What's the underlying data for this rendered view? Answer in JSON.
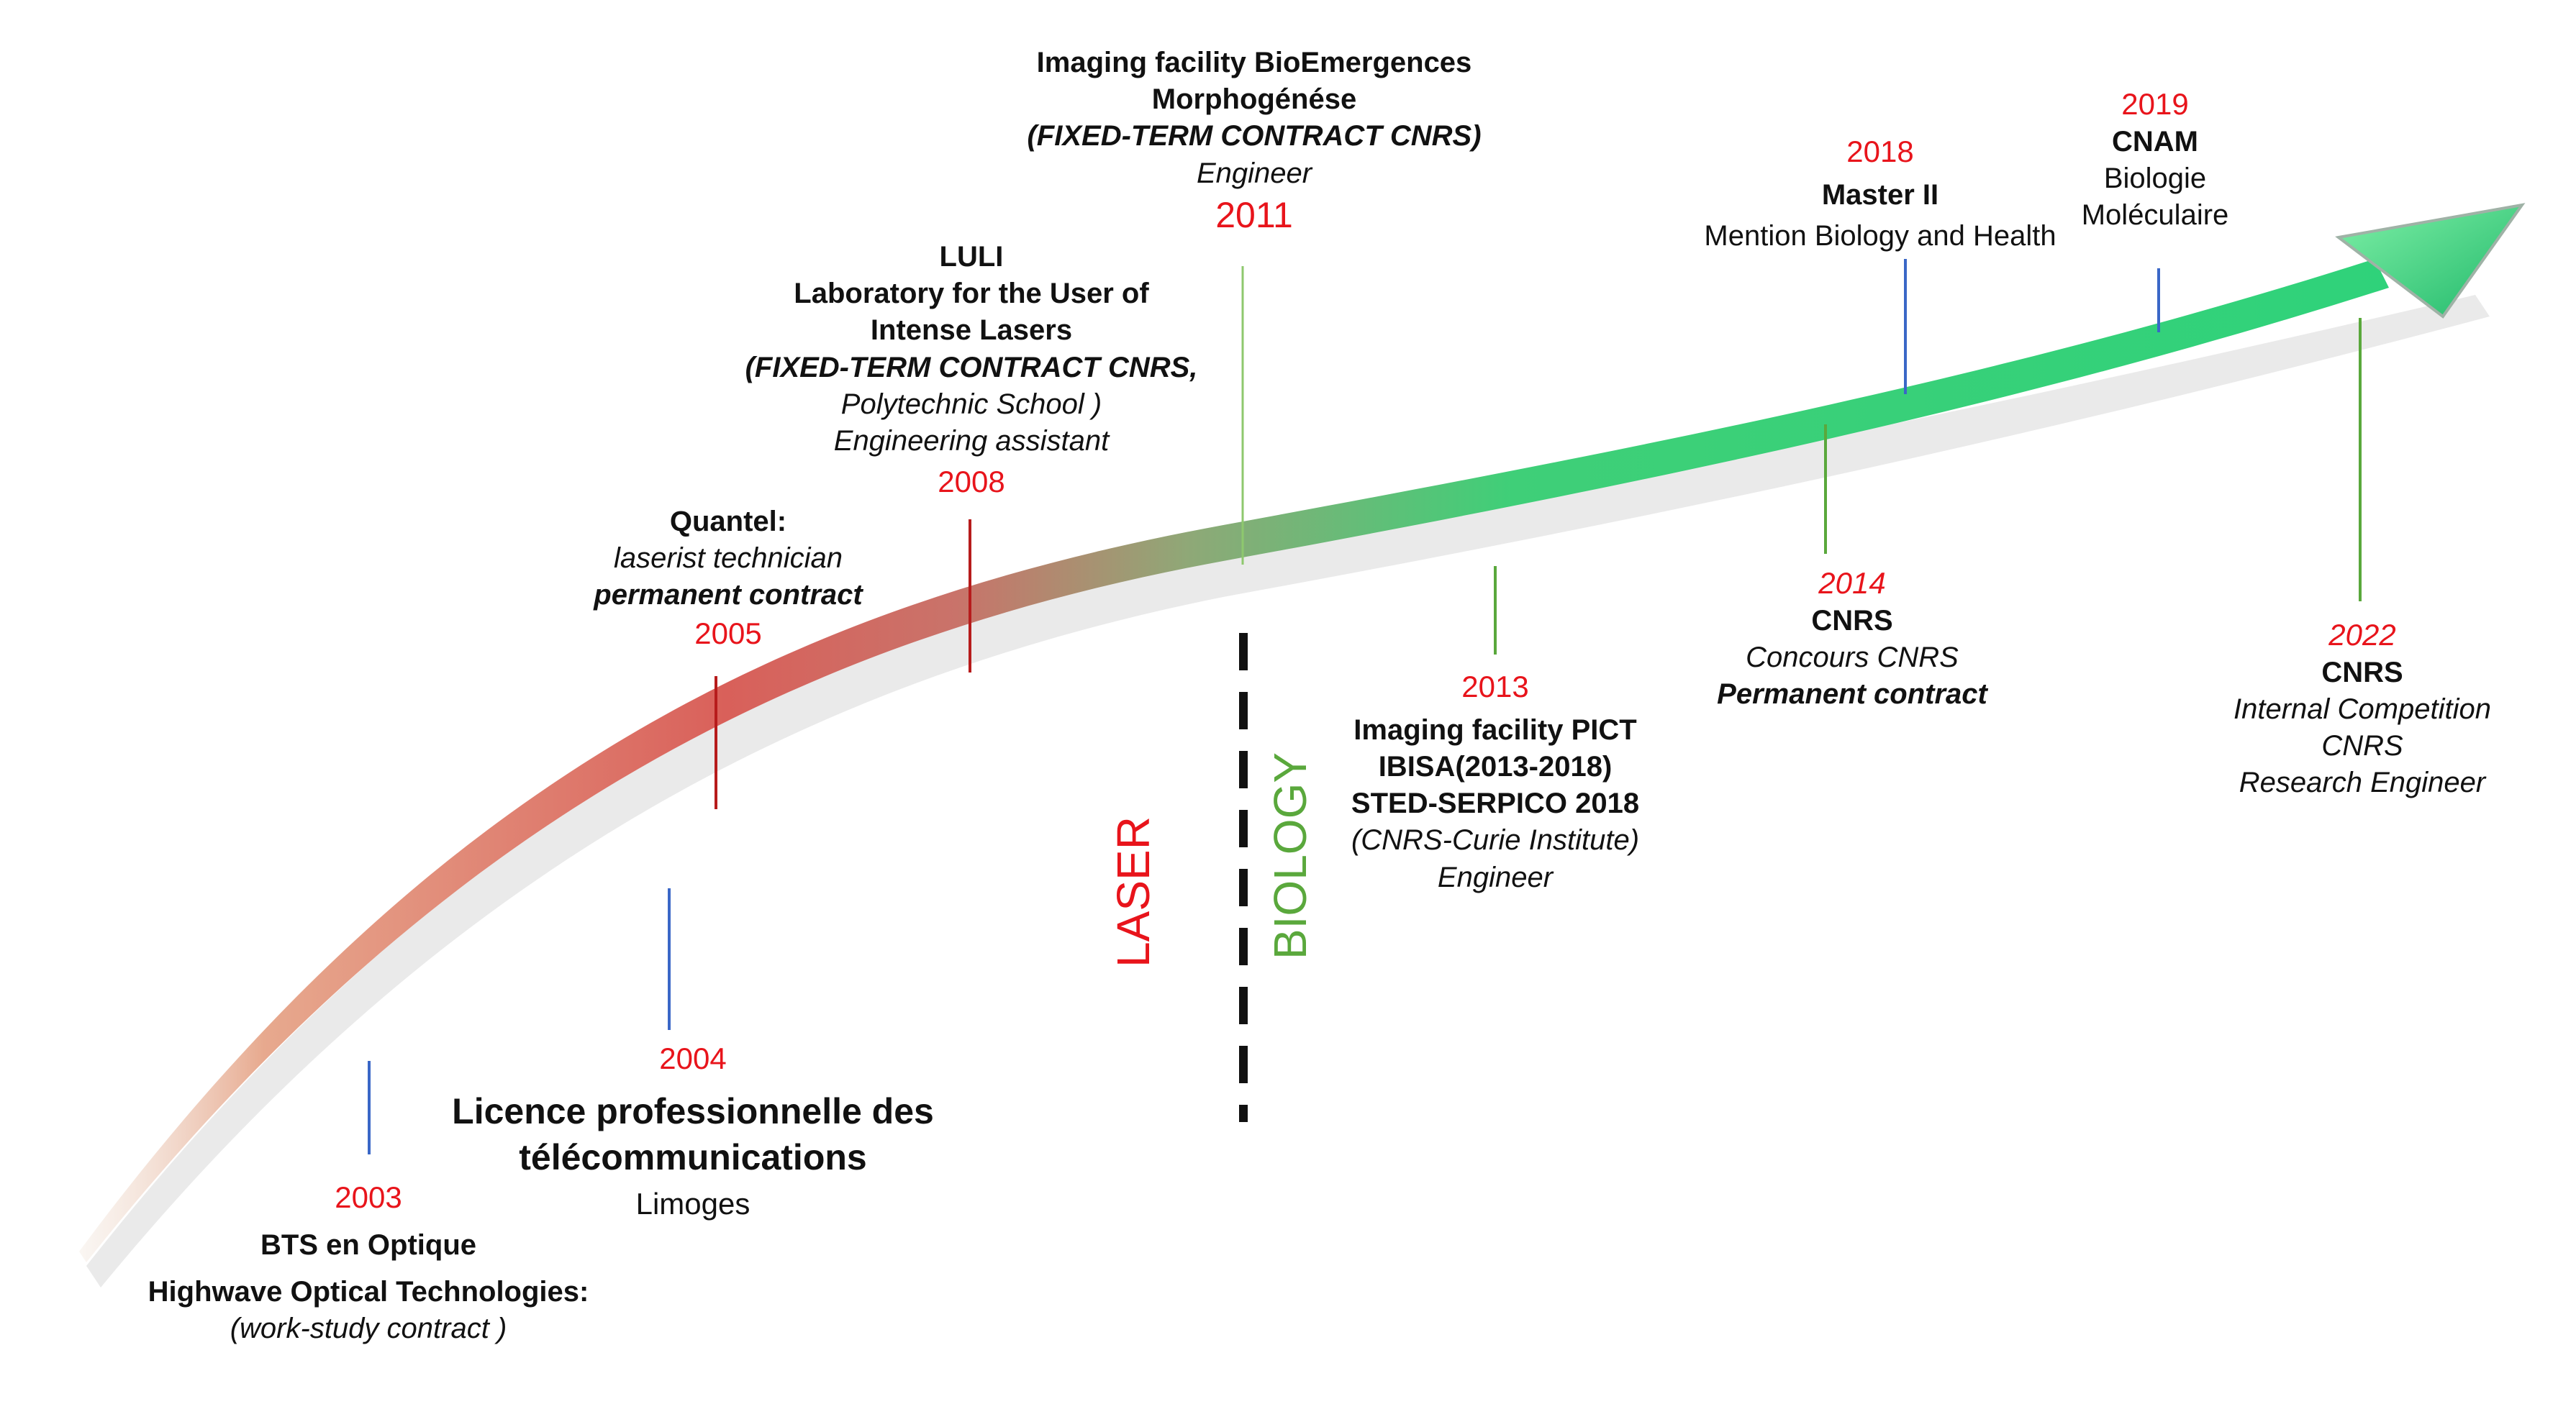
{
  "diagram": {
    "colors": {
      "year": "#e8141b",
      "laser": "#e8141b",
      "biology": "#5aa83c",
      "arrow_tip": "#34d17a"
    },
    "milestones": {
      "m2003": {
        "year": "2003",
        "line1": "BTS en Optique",
        "line2": "Highwave Optical Technologies:",
        "line3": "(work-study contract )"
      },
      "m2004": {
        "year": "2004",
        "line1": "Licence professionnelle des",
        "line2": "télécommunications",
        "line3": "Limoges"
      },
      "m2005": {
        "line1": "Quantel:",
        "line2": "laserist technician",
        "line3": "permanent contract",
        "year": "2005"
      },
      "m2008": {
        "line1": "LULI",
        "line2": "Laboratory for the User of",
        "line3": "Intense Lasers",
        "line4": "(FIXED-TERM CONTRACT CNRS,",
        "line5": "Polytechnic School )",
        "line6": "Engineering assistant",
        "year": "2008"
      },
      "m2011": {
        "line1": "Imaging facility BioEmergences",
        "line2": "Morphogénése",
        "line3": "(FIXED-TERM CONTRACT CNRS)",
        "line4": "Engineer",
        "year": "2011"
      },
      "m2013": {
        "year": "2013",
        "line1": "Imaging facility PICT",
        "line2": "IBISA(2013-2018)",
        "line3": "STED-SERPICO 2018",
        "line4": "(CNRS-Curie Institute)",
        "line5": "Engineer"
      },
      "m2014": {
        "year": "2014",
        "line1": "CNRS",
        "line2": "Concours CNRS",
        "line3": "Permanent contract"
      },
      "m2018": {
        "year": "2018",
        "line1": "Master II",
        "line2": "Mention Biology and Health"
      },
      "m2019": {
        "year": "2019",
        "line1": "CNAM",
        "line2": "Biologie",
        "line3": "Moléculaire"
      },
      "m2022": {
        "year": "2022",
        "line1": "CNRS",
        "line2": "Internal Competition",
        "line3": "CNRS",
        "line4": "Research Engineer"
      }
    },
    "phases": {
      "laser": "LASER",
      "biology": "BIOLOGY"
    }
  }
}
